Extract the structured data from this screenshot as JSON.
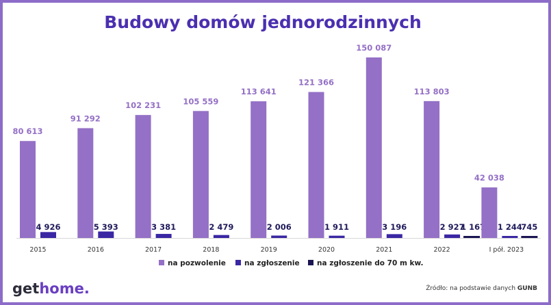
{
  "title": "Budowy domów jednorodzinnych",
  "logo": {
    "part1": "get",
    "part2": "home."
  },
  "source": {
    "prefix": "Źródło: na podstawie danych",
    "bold": "GUNB"
  },
  "colors": {
    "pozwolenie": "#9470c6",
    "zgloszenie": "#3a27a3",
    "zgloszenie70": "#1b1552",
    "frame": "#8c6cc8",
    "title": "#4b2fb0"
  },
  "chart_data": {
    "type": "bar",
    "categories": [
      "2015",
      "2016",
      "2017",
      "2018",
      "2019",
      "2020",
      "2021",
      "2022",
      "I pół. 2023"
    ],
    "series": [
      {
        "name": "na pozwolenie",
        "values": [
          80613,
          91292,
          102231,
          105559,
          113641,
          121366,
          150087,
          113803,
          42038
        ],
        "labels": [
          "80 613",
          "91 292",
          "102 231",
          "105 559",
          "113 641",
          "121 366",
          "150 087",
          "113 803",
          "42 038"
        ]
      },
      {
        "name": "na zgłoszenie",
        "values": [
          4926,
          5393,
          3381,
          2479,
          2006,
          1911,
          3196,
          2927,
          1244
        ],
        "labels": [
          "4 926",
          "5 393",
          "3 381",
          "2 479",
          "2 006",
          "1 911",
          "3 196",
          "2 927",
          "1 244"
        ]
      },
      {
        "name": "na zgłoszenie do 70 m kw.",
        "values": [
          null,
          null,
          null,
          null,
          null,
          null,
          null,
          1167,
          745
        ],
        "labels": [
          "",
          "",
          "",
          "",
          "",
          "",
          "",
          "1 167",
          "745"
        ]
      }
    ],
    "legend_position": "bottom",
    "grid": false
  }
}
